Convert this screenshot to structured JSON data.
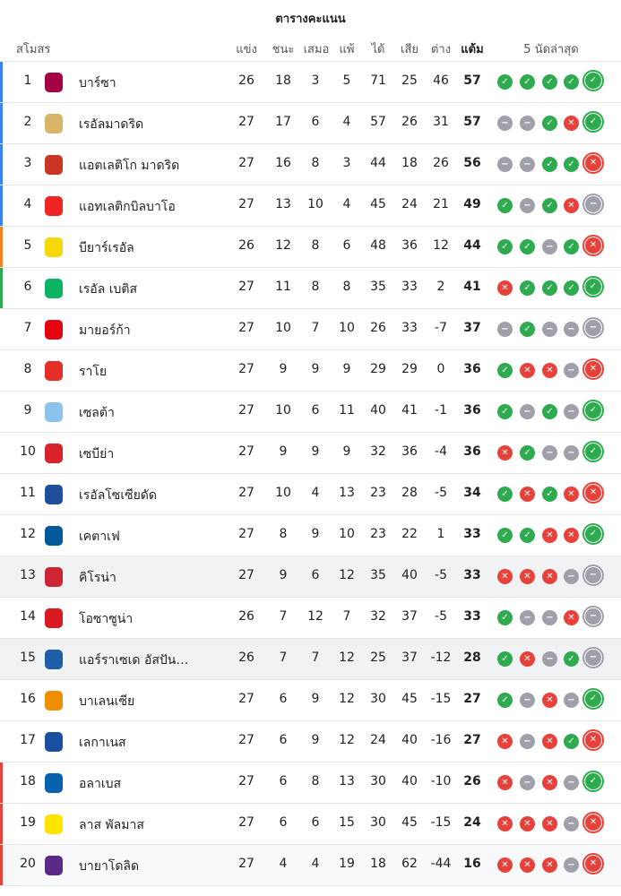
{
  "title": "ตารางคะแนน",
  "headers": {
    "club": "สโมสร",
    "played": "แข่ง",
    "won": "ชนะ",
    "drawn": "เสมอ",
    "lost": "แพ้",
    "gf": "ได้",
    "ga": "เสีย",
    "gd": "ต่าง",
    "pts": "แต้ม",
    "form": "5 นัดล่าสุด"
  },
  "colors": {
    "win": "#2eaa4f",
    "draw": "#a0a0ab",
    "loss": "#e8413a",
    "ucl": "#3b82f6",
    "uel": "#f58220",
    "uecl": "#2eaa4f",
    "relegation": "#e8413a"
  },
  "rows": [
    {
      "rank": "1",
      "name": "บาร์ซา",
      "p": "26",
      "w": "18",
      "d": "3",
      "l": "5",
      "gf": "71",
      "ga": "25",
      "gd": "46",
      "pts": "57",
      "form": [
        "W",
        "W",
        "W",
        "W",
        "W"
      ],
      "zone": "ucl",
      "logo": "#a50044"
    },
    {
      "rank": "2",
      "name": "เรอัลมาดริด",
      "p": "27",
      "w": "17",
      "d": "6",
      "l": "4",
      "gf": "57",
      "ga": "26",
      "gd": "31",
      "pts": "57",
      "form": [
        "D",
        "D",
        "W",
        "L",
        "W"
      ],
      "zone": "ucl",
      "logo": "#d9b56a"
    },
    {
      "rank": "3",
      "name": "แอตเลติโก มาดริด",
      "p": "27",
      "w": "16",
      "d": "8",
      "l": "3",
      "gf": "44",
      "ga": "18",
      "gd": "26",
      "pts": "56",
      "form": [
        "D",
        "D",
        "W",
        "W",
        "L"
      ],
      "zone": "ucl",
      "logo": "#cb3524"
    },
    {
      "rank": "4",
      "name": "แอทเลติกบิลบาโอ",
      "p": "27",
      "w": "13",
      "d": "10",
      "l": "4",
      "gf": "45",
      "ga": "24",
      "gd": "21",
      "pts": "49",
      "form": [
        "W",
        "D",
        "W",
        "L",
        "D"
      ],
      "zone": "ucl",
      "logo": "#ee2523"
    },
    {
      "rank": "5",
      "name": "บียาร์เรอัล",
      "p": "26",
      "w": "12",
      "d": "8",
      "l": "6",
      "gf": "48",
      "ga": "36",
      "gd": "12",
      "pts": "44",
      "form": [
        "W",
        "W",
        "D",
        "W",
        "L"
      ],
      "zone": "uel",
      "logo": "#f5d90a"
    },
    {
      "rank": "6",
      "name": "เรอัล เบติส",
      "p": "27",
      "w": "11",
      "d": "8",
      "l": "8",
      "gf": "35",
      "ga": "33",
      "gd": "2",
      "pts": "41",
      "form": [
        "L",
        "W",
        "W",
        "W",
        "W"
      ],
      "zone": "uecl",
      "logo": "#0bb363"
    },
    {
      "rank": "7",
      "name": "มายอร์ก้า",
      "p": "27",
      "w": "10",
      "d": "7",
      "l": "10",
      "gf": "26",
      "ga": "33",
      "gd": "-7",
      "pts": "37",
      "form": [
        "D",
        "W",
        "D",
        "D",
        "D"
      ],
      "zone": "",
      "logo": "#e20613"
    },
    {
      "rank": "8",
      "name": "ราโย",
      "p": "27",
      "w": "9",
      "d": "9",
      "l": "9",
      "gf": "29",
      "ga": "29",
      "gd": "0",
      "pts": "36",
      "form": [
        "W",
        "L",
        "L",
        "D",
        "L"
      ],
      "zone": "",
      "logo": "#e53027"
    },
    {
      "rank": "9",
      "name": "เซลต้า",
      "p": "27",
      "w": "10",
      "d": "6",
      "l": "11",
      "gf": "40",
      "ga": "41",
      "gd": "-1",
      "pts": "36",
      "form": [
        "W",
        "D",
        "W",
        "D",
        "W"
      ],
      "zone": "",
      "logo": "#8ac3ee"
    },
    {
      "rank": "10",
      "name": "เซบีย่า",
      "p": "27",
      "w": "9",
      "d": "9",
      "l": "9",
      "gf": "32",
      "ga": "36",
      "gd": "-4",
      "pts": "36",
      "form": [
        "L",
        "W",
        "D",
        "D",
        "W"
      ],
      "zone": "",
      "logo": "#d8232a"
    },
    {
      "rank": "11",
      "name": "เรอัลโซเซียดัด",
      "p": "27",
      "w": "10",
      "d": "4",
      "l": "13",
      "gf": "23",
      "ga": "28",
      "gd": "-5",
      "pts": "34",
      "form": [
        "W",
        "L",
        "W",
        "L",
        "L"
      ],
      "zone": "",
      "logo": "#1f4e9c"
    },
    {
      "rank": "12",
      "name": "เคตาเฟ",
      "p": "27",
      "w": "8",
      "d": "9",
      "l": "10",
      "gf": "23",
      "ga": "22",
      "gd": "1",
      "pts": "33",
      "form": [
        "W",
        "W",
        "L",
        "L",
        "W"
      ],
      "zone": "",
      "logo": "#005999"
    },
    {
      "rank": "13",
      "name": "คิโรน่า",
      "p": "27",
      "w": "9",
      "d": "6",
      "l": "12",
      "gf": "35",
      "ga": "40",
      "gd": "-5",
      "pts": "33",
      "form": [
        "L",
        "L",
        "L",
        "D",
        "D"
      ],
      "zone": "",
      "logo": "#cd2534",
      "highlight": true
    },
    {
      "rank": "14",
      "name": "โอซาซูน่า",
      "p": "26",
      "w": "7",
      "d": "12",
      "l": "7",
      "gf": "32",
      "ga": "37",
      "gd": "-5",
      "pts": "33",
      "form": [
        "W",
        "D",
        "D",
        "L",
        "D"
      ],
      "zone": "",
      "logo": "#d91a21"
    },
    {
      "rank": "15",
      "name": "แอร์ราเซเด อัสปันญ่อล",
      "p": "26",
      "w": "7",
      "d": "7",
      "l": "12",
      "gf": "25",
      "ga": "37",
      "gd": "-12",
      "pts": "28",
      "form": [
        "W",
        "L",
        "D",
        "W",
        "D"
      ],
      "zone": "",
      "logo": "#1e5fa8",
      "highlight": true
    },
    {
      "rank": "16",
      "name": "บาเลนเซีย",
      "p": "27",
      "w": "6",
      "d": "9",
      "l": "12",
      "gf": "30",
      "ga": "45",
      "gd": "-15",
      "pts": "27",
      "form": [
        "W",
        "D",
        "L",
        "D",
        "W"
      ],
      "zone": "",
      "logo": "#f18e00"
    },
    {
      "rank": "17",
      "name": "เลกาเนส",
      "p": "27",
      "w": "6",
      "d": "9",
      "l": "12",
      "gf": "24",
      "ga": "40",
      "gd": "-16",
      "pts": "27",
      "form": [
        "L",
        "D",
        "L",
        "W",
        "L"
      ],
      "zone": "",
      "logo": "#1b4fa0"
    },
    {
      "rank": "18",
      "name": "อลาเบส",
      "p": "27",
      "w": "6",
      "d": "8",
      "l": "13",
      "gf": "30",
      "ga": "40",
      "gd": "-10",
      "pts": "26",
      "form": [
        "L",
        "D",
        "L",
        "D",
        "W"
      ],
      "zone": "relegation",
      "logo": "#0761af"
    },
    {
      "rank": "19",
      "name": "ลาส พัลมาส",
      "p": "27",
      "w": "6",
      "d": "6",
      "l": "15",
      "gf": "30",
      "ga": "45",
      "gd": "-15",
      "pts": "24",
      "form": [
        "L",
        "L",
        "L",
        "D",
        "L"
      ],
      "zone": "relegation",
      "logo": "#ffe400"
    },
    {
      "rank": "20",
      "name": "บายาโดลิด",
      "p": "27",
      "w": "4",
      "d": "4",
      "l": "19",
      "gf": "18",
      "ga": "62",
      "gd": "-44",
      "pts": "16",
      "form": [
        "L",
        "L",
        "L",
        "D",
        "L"
      ],
      "zone": "relegation",
      "logo": "#5b2a86",
      "highlight2": true
    }
  ]
}
